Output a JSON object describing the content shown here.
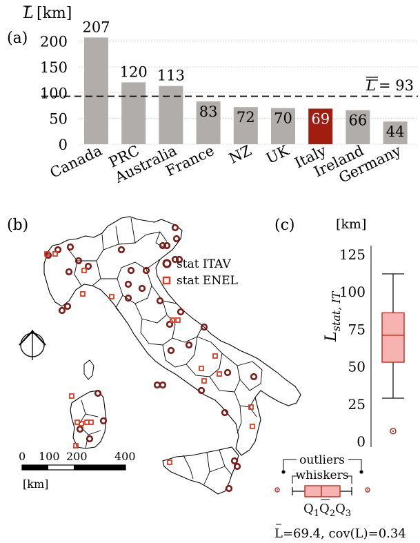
{
  "panel_a": {
    "label": "(a)",
    "ylabel_symbol": "L",
    "ylabel_unit": "[km]",
    "yticks": [
      "0",
      "50",
      "100",
      "150",
      "200"
    ],
    "mean_label": "= 93",
    "mean_symbol": "L"
  },
  "panel_b": {
    "label": "(b)",
    "legend": [
      {
        "key": "itav",
        "label": "stat ITAV",
        "color": "#7a1a12"
      },
      {
        "key": "enel",
        "label": "stat ENEL",
        "color": "#e03a20"
      }
    ],
    "scale_ticks": [
      "0",
      "100",
      "200",
      "400"
    ],
    "scale_unit": "[km]"
  },
  "panel_c": {
    "label": "(c)",
    "unit": "[km]",
    "yticks": [
      "0",
      "25",
      "50",
      "75",
      "100",
      "125"
    ],
    "ylabel_main": "L",
    "ylabel_sub": "stat, IT",
    "legend_outliers": "outliers",
    "legend_whiskers": "whiskers",
    "legend_q1": "Q",
    "legend_q1_sub": "1",
    "legend_q2": "Q",
    "legend_q2_sub": "2",
    "legend_q3": "Q",
    "legend_q3_sub": "3",
    "stats_text": "L=69.4,  cov(L)=0.34"
  },
  "colors": {
    "bar": "#b0adab",
    "highlight": "#a11d0f",
    "box_fill": "#f7b3b0",
    "box_stroke": "#c0281c",
    "itav": "#7a1a12",
    "enel": "#e03a20"
  },
  "chart_data": [
    {
      "type": "bar",
      "categories": [
        "Canada",
        "PRC",
        "Australia",
        "France",
        "NZ",
        "UK",
        "Italy",
        "Ireland",
        "Germany"
      ],
      "values": [
        207,
        120,
        113,
        83,
        72,
        70,
        69,
        66,
        44
      ],
      "highlight": "Italy",
      "ylim": [
        0,
        225
      ],
      "yticks": [
        0,
        50,
        100,
        150,
        200
      ],
      "mean_line": 93,
      "grid": "horizontal dotted"
    },
    {
      "type": "box",
      "ylim": [
        0,
        125
      ],
      "yticks": [
        0,
        25,
        50,
        75,
        100,
        125
      ],
      "whisker_low": 29,
      "q1": 53,
      "median": 71,
      "q3": 86,
      "whisker_high": 112,
      "outliers": [
        7
      ],
      "mean": 69.4,
      "cov": 0.34
    }
  ]
}
